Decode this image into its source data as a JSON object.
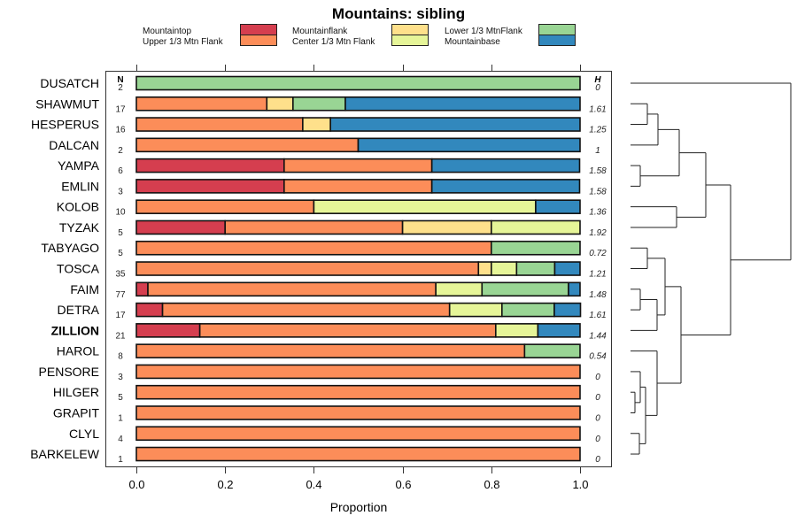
{
  "chart_data": {
    "type": "bar",
    "orientation": "horizontal-stacked-proportion",
    "title": "Mountains: sibling",
    "xlabel": "Proportion",
    "ylabel": "",
    "xlim": [
      0,
      1
    ],
    "x_ticks": [
      "0.0",
      "0.2",
      "0.4",
      "0.6",
      "0.8",
      "1.0"
    ],
    "x_tick_values": [
      0,
      0.2,
      0.4,
      0.6,
      0.8,
      1.0
    ],
    "legend_position": "top",
    "n_header": "N",
    "h_header": "H",
    "series": [
      {
        "name": "Mountaintop",
        "color": "#D53E4F"
      },
      {
        "name": "Upper 1/3 Mtn Flank",
        "color": "#FC8D59"
      },
      {
        "name": "Mountainflank",
        "color": "#FEE08B"
      },
      {
        "name": "Center 1/3 Mtn Flank",
        "color": "#E6F598"
      },
      {
        "name": "Lower 1/3 MtnFlank",
        "color": "#99D594"
      },
      {
        "name": "Mountainbase",
        "color": "#3288BD"
      }
    ],
    "legend_order": [
      [
        "Mountaintop",
        "Upper 1/3 Mtn Flank"
      ],
      [
        "Mountainflank",
        "Center 1/3 Mtn Flank"
      ],
      [
        "Lower 1/3 MtnFlank",
        "Mountainbase"
      ]
    ],
    "categories": [
      "DUSATCH",
      "SHAWMUT",
      "HESPERUS",
      "DALCAN",
      "YAMPA",
      "EMLIN",
      "KOLOB",
      "TYZAK",
      "TABYAGO",
      "TOSCA",
      "FAIM",
      "DETRA",
      "ZILLION",
      "HAROL",
      "PENSORE",
      "HILGER",
      "GRAPIT",
      "CLYL",
      "BARKELEW"
    ],
    "highlighted_category": "ZILLION",
    "rows": [
      {
        "label": "DUSATCH",
        "n": "2",
        "h": "0",
        "values": [
          0,
          0,
          0,
          0,
          1.0,
          0
        ]
      },
      {
        "label": "SHAWMUT",
        "n": "17",
        "h": "1.61",
        "values": [
          0,
          0.294,
          0.059,
          0,
          0.118,
          0.529
        ]
      },
      {
        "label": "HESPERUS",
        "n": "16",
        "h": "1.25",
        "values": [
          0,
          0.375,
          0.0625,
          0,
          0,
          0.5625
        ]
      },
      {
        "label": "DALCAN",
        "n": "2",
        "h": "1",
        "values": [
          0,
          0.5,
          0,
          0,
          0,
          0.5
        ]
      },
      {
        "label": "YAMPA",
        "n": "6",
        "h": "1.58",
        "values": [
          0.333,
          0.333,
          0,
          0,
          0,
          0.333
        ]
      },
      {
        "label": "EMLIN",
        "n": "3",
        "h": "1.58",
        "values": [
          0.333,
          0.333,
          0,
          0,
          0,
          0.333
        ]
      },
      {
        "label": "KOLOB",
        "n": "10",
        "h": "1.36",
        "values": [
          0,
          0.4,
          0,
          0.5,
          0,
          0.1
        ]
      },
      {
        "label": "TYZAK",
        "n": "5",
        "h": "1.92",
        "values": [
          0.2,
          0.4,
          0.2,
          0.2,
          0,
          0
        ]
      },
      {
        "label": "TABYAGO",
        "n": "5",
        "h": "0.72",
        "values": [
          0,
          0.8,
          0,
          0,
          0.2,
          0
        ]
      },
      {
        "label": "TOSCA",
        "n": "35",
        "h": "1.21",
        "values": [
          0,
          0.771,
          0.029,
          0.057,
          0.086,
          0.057
        ]
      },
      {
        "label": "FAIM",
        "n": "77",
        "h": "1.48",
        "values": [
          0.026,
          0.649,
          0,
          0.104,
          0.195,
          0.026
        ]
      },
      {
        "label": "DETRA",
        "n": "17",
        "h": "1.61",
        "values": [
          0.059,
          0.647,
          0,
          0.118,
          0.118,
          0.059
        ]
      },
      {
        "label": "ZILLION",
        "n": "21",
        "h": "1.44",
        "values": [
          0.143,
          0.667,
          0,
          0.095,
          0,
          0.095
        ]
      },
      {
        "label": "HAROL",
        "n": "8",
        "h": "0.54",
        "values": [
          0,
          0.875,
          0,
          0,
          0.125,
          0
        ]
      },
      {
        "label": "PENSORE",
        "n": "3",
        "h": "0",
        "values": [
          0,
          1.0,
          0,
          0,
          0,
          0
        ]
      },
      {
        "label": "HILGER",
        "n": "5",
        "h": "0",
        "values": [
          0,
          1.0,
          0,
          0,
          0,
          0
        ]
      },
      {
        "label": "GRAPIT",
        "n": "1",
        "h": "0",
        "values": [
          0,
          1.0,
          0,
          0,
          0,
          0
        ]
      },
      {
        "label": "CLYL",
        "n": "4",
        "h": "0",
        "values": [
          0,
          1.0,
          0,
          0,
          0,
          0
        ]
      },
      {
        "label": "BARKELEW",
        "n": "1",
        "h": "0",
        "values": [
          0,
          1.0,
          0,
          0,
          0,
          0
        ]
      }
    ],
    "dendrogram": {
      "position": "right",
      "leaf_order": [
        "DUSATCH",
        "SHAWMUT",
        "HESPERUS",
        "DALCAN",
        "YAMPA",
        "EMLIN",
        "KOLOB",
        "TYZAK",
        "TABYAGO",
        "TOSCA",
        "FAIM",
        "DETRA",
        "ZILLION",
        "HAROL",
        "PENSORE",
        "HILGER",
        "GRAPIT",
        "CLYL",
        "BARKELEW"
      ],
      "merges": [
        {
          "a": "SHAWMUT",
          "b": "HESPERUS",
          "height": 0.1
        },
        {
          "a": "HILGER",
          "b": "GRAPIT",
          "height": 0.03
        },
        {
          "a": "CLYL",
          "b": "BARKELEW",
          "height": 0.05
        },
        {
          "a": "YAMPA",
          "b": "EMLIN",
          "height": 0.06
        },
        {
          "a": "FAIM",
          "b": "DETRA",
          "height": 0.06
        },
        {
          "a": "TABYAGO",
          "b": "TOSCA",
          "height": 0.1
        },
        {
          "a": "PENSORE",
          "b": "HILGER+GRAPIT",
          "height": 0.06
        },
        {
          "a": "PENSORE+HILGER+GRAPIT",
          "b": "CLYL+BARKELEW",
          "height": 0.09
        },
        {
          "a": "FAIM+DETRA",
          "b": "ZILLION",
          "height": 0.16
        },
        {
          "a": "SHAWMUT+HESPERUS",
          "b": "DALCAN",
          "height": 0.17
        },
        {
          "a": "TABYAGO+TOSCA",
          "b": "FAIM+DETRA+ZILLION",
          "height": 0.21
        },
        {
          "a": "HAROL",
          "b": "PENSORE+HILGER+GRAPIT+CLYL+BARKELEW",
          "height": 0.16
        },
        {
          "a": "KOLOB",
          "b": "TYZAK",
          "height": 0.29
        },
        {
          "a": "SHAWMUT+HESPERUS+DALCAN",
          "b": "YAMPA+EMLIN",
          "height": 0.3
        },
        {
          "a": "SHAWMUT+HESPERUS+DALCAN+YAMPA+EMLIN",
          "b": "KOLOB+TYZAK",
          "height": 0.47
        },
        {
          "a": "TABYAGO+TOSCA+FAIM+DETRA+ZILLION",
          "b": "HAROL+PENSORE+HILGER+GRAPIT+CLYL+BARKELEW",
          "height": 0.31
        },
        {
          "a": "SHAWMUT..TYZAK",
          "b": "TABYAGO..BARKELEW",
          "height": 0.62
        },
        {
          "a": "DUSATCH",
          "b": "SHAWMUT..BARKELEW",
          "height": 1.0
        }
      ]
    }
  }
}
